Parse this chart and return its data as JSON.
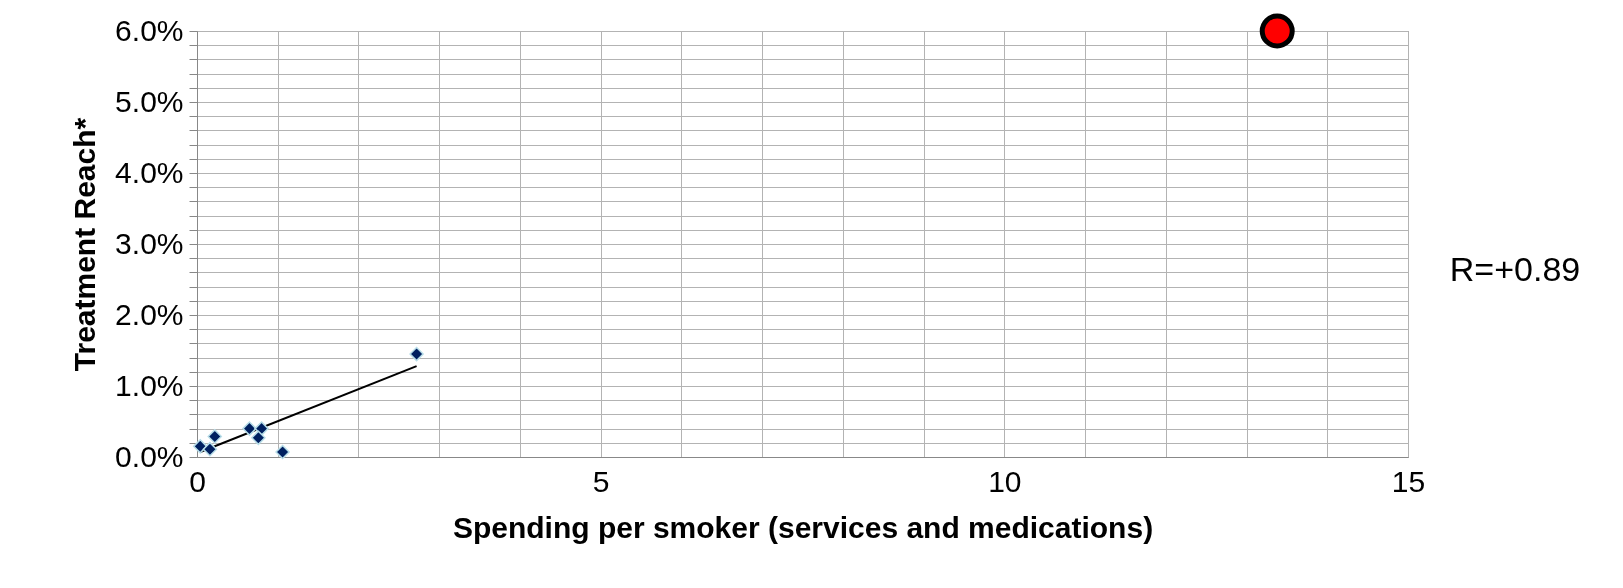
{
  "chart_data": {
    "type": "scatter",
    "xlabel": "Spending per smoker (services and medications)",
    "ylabel": "Treatment Reach*",
    "xlim": [
      0,
      15
    ],
    "ylim": [
      0,
      6
    ],
    "xticks": [
      0,
      {
        "value": 1,
        "label": null
      },
      {
        "value": 2,
        "label": null
      },
      {
        "value": 3,
        "label": null
      },
      {
        "value": 4,
        "label": null
      },
      5,
      {
        "value": 6,
        "label": null
      },
      {
        "value": 7,
        "label": null
      },
      {
        "value": 8,
        "label": null
      },
      {
        "value": 9,
        "label": null
      },
      10,
      {
        "value": 11,
        "label": null
      },
      {
        "value": 12,
        "label": null
      },
      {
        "value": 13,
        "label": null
      },
      {
        "value": 14,
        "label": null
      },
      15
    ],
    "yticks": [
      {
        "value": 0,
        "label": "0.0%"
      },
      {
        "value": 0.2,
        "label": null
      },
      {
        "value": 0.4,
        "label": null
      },
      {
        "value": 0.6,
        "label": null
      },
      {
        "value": 0.8,
        "label": null
      },
      {
        "value": 1,
        "label": "1.0%"
      },
      {
        "value": 1.2,
        "label": null
      },
      {
        "value": 1.4,
        "label": null
      },
      {
        "value": 1.6,
        "label": null
      },
      {
        "value": 1.8,
        "label": null
      },
      {
        "value": 2,
        "label": "2.0%"
      },
      {
        "value": 2.2,
        "label": null
      },
      {
        "value": 2.4,
        "label": null
      },
      {
        "value": 2.6,
        "label": null
      },
      {
        "value": 2.8,
        "label": null
      },
      {
        "value": 3,
        "label": "3.0%"
      },
      {
        "value": 3.2,
        "label": null
      },
      {
        "value": 3.4,
        "label": null
      },
      {
        "value": 3.6,
        "label": null
      },
      {
        "value": 3.8,
        "label": null
      },
      {
        "value": 4,
        "label": "4.0%"
      },
      {
        "value": 4.2,
        "label": null
      },
      {
        "value": 4.4,
        "label": null
      },
      {
        "value": 4.6,
        "label": null
      },
      {
        "value": 4.8,
        "label": null
      },
      {
        "value": 5,
        "label": "5.0%"
      },
      {
        "value": 5.2,
        "label": null
      },
      {
        "value": 5.4,
        "label": null
      },
      {
        "value": 5.6,
        "label": null
      },
      {
        "value": 5.8,
        "label": null
      },
      {
        "value": 6,
        "label": "6.0%"
      }
    ],
    "grid": true,
    "series": [
      {
        "marker": "diamond",
        "color": "#002060",
        "x": [
          0.04,
          0.16,
          0.22,
          0.65,
          0.8,
          0.76,
          1.06,
          2.72
        ],
        "values": [
          0.15,
          0.11,
          0.29,
          0.4,
          0.4,
          0.27,
          0.07,
          1.45
        ]
      },
      {
        "type": "line",
        "color": "#000000",
        "x": [
          0.04,
          2.72
        ],
        "values": [
          0.07,
          1.28
        ]
      },
      {
        "marker": "circle",
        "color": "#ff0000",
        "x": [
          13.38
        ],
        "values": [
          6.0
        ]
      }
    ],
    "annotations": [
      "R=+0.89"
    ]
  }
}
